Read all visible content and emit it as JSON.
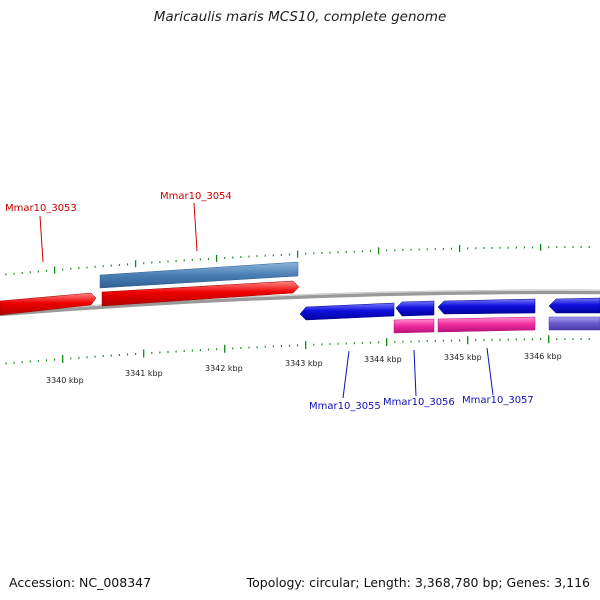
{
  "title": "Maricaulis maris MCS10, complete genome",
  "footer": {
    "accession": "Accession: NC_008347",
    "topology": "Topology: circular; Length: 3,368,780 bp; Genes: 3,116"
  },
  "colors": {
    "forward_gene": "#ee0000",
    "reverse_gene": "#1010dd",
    "cds_steelblue": "#4a7fb5",
    "cds_pink": "#ee2a9e",
    "cds_slate": "#6a5acd",
    "backbone": "#8c8c8c",
    "tick": "#118811",
    "label_red": "#cc0000",
    "label_blue": "#1010bb"
  },
  "scale_labels": [
    "3340 kbp",
    "3341 kbp",
    "3342 kbp",
    "3343 kbp",
    "3344 kbp",
    "3345 kbp",
    "3346 kbp"
  ],
  "genes": [
    {
      "name": "Mmar10_3053",
      "strand": "+"
    },
    {
      "name": "Mmar10_3054",
      "strand": "+"
    },
    {
      "name": "Mmar10_3055",
      "strand": "-"
    },
    {
      "name": "Mmar10_3056",
      "strand": "-"
    },
    {
      "name": "Mmar10_3057",
      "strand": "-"
    }
  ]
}
